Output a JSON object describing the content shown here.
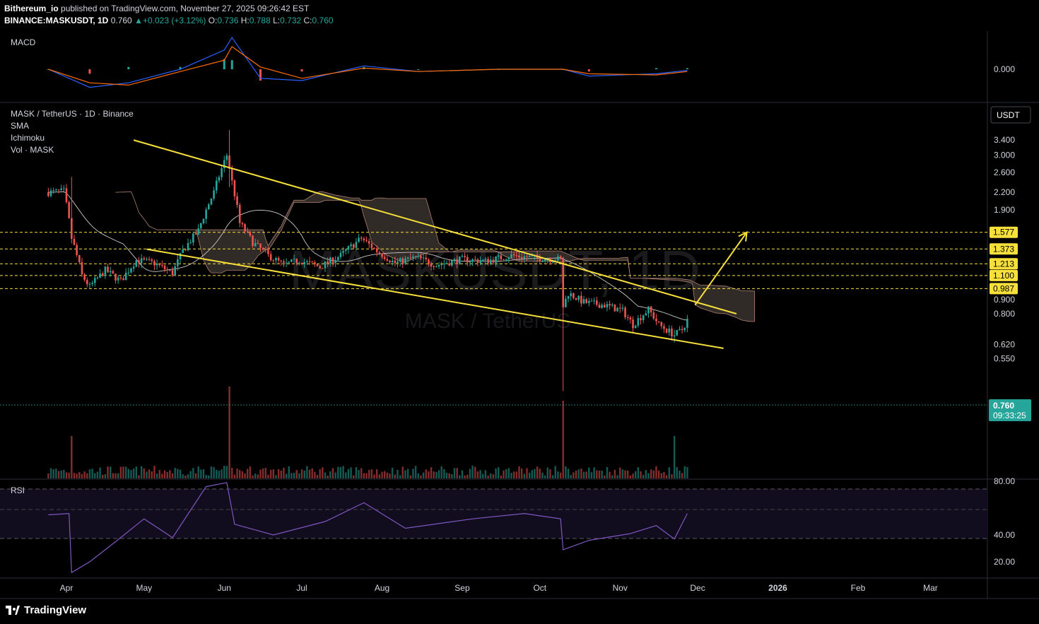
{
  "header": {
    "publisher": "Bithereum_io",
    "published_text": " published on TradingView.com, November 27, 2025 09:26:42 EST",
    "symbol": "BINANCE:MASKUSDT, 1D",
    "last": "0.760",
    "change": "+0.023 (+3.12%)",
    "o_label": "O:",
    "o": "0.736",
    "h_label": "H:",
    "h": "0.788",
    "l_label": "L:",
    "l": "0.732",
    "c_label": "C:",
    "c": "0.760"
  },
  "panes": {
    "macd_label": "MACD",
    "macd_zero": "0.000",
    "main_title": "MASK / TetherUS · 1D · Binance",
    "indicators": [
      "SMA",
      "Ichimoku",
      "Vol · MASK"
    ],
    "rsi_label": "RSI",
    "currency_button": "USDT",
    "watermark": "MASKUSDT, 1D",
    "watermark_sub": "MASK / TetherUS",
    "price_badge": "0.760",
    "countdown": "09:33:25"
  },
  "colors": {
    "up": "#26a69a",
    "down": "#ef5350",
    "trendline": "#f7e03c",
    "level": "#f7e03c",
    "rsi": "#7e57c2",
    "sma": "#c8c8c8",
    "cloud": "#3a332f"
  },
  "footer": {
    "brand": "TradingView"
  },
  "chart_data": [
    {
      "type": "line",
      "name": "MACD",
      "zero_label": "0.000",
      "x": [
        "Mar 25",
        "Apr 10",
        "Apr 25",
        "May 15",
        "Jun 1",
        "Jun 4",
        "Jun 15",
        "Jul 1",
        "Jul 25",
        "Aug 15",
        "Sep 15",
        "Oct 10",
        "Oct 20",
        "Nov 15",
        "Nov 27"
      ],
      "macd": [
        0.0,
        -0.16,
        -0.12,
        0.0,
        0.17,
        0.28,
        -0.08,
        -0.1,
        0.03,
        -0.02,
        0.0,
        0.0,
        -0.06,
        -0.04,
        -0.01
      ],
      "signal": [
        0.0,
        -0.12,
        -0.14,
        -0.02,
        0.08,
        0.2,
        0.02,
        -0.08,
        0.01,
        -0.02,
        0.0,
        0.0,
        -0.04,
        -0.05,
        -0.02
      ]
    },
    {
      "type": "candlestick",
      "title": "MASK / TetherUS · 1D · Binance",
      "y_scale": "log",
      "y_ticks": [
        "3.400",
        "3.000",
        "2.600",
        "2.200",
        "1.900",
        "0.900",
        "0.800",
        "0.620",
        "0.550"
      ],
      "x_ticks": [
        "Apr",
        "May",
        "Jun",
        "Jul",
        "Aug",
        "Sep",
        "Oct",
        "Nov",
        "Dec",
        "2026",
        "Feb",
        "Mar"
      ],
      "last_price": 0.76,
      "horizontal_levels": [
        1.577,
        1.373,
        1.213,
        1.1,
        0.987
      ],
      "level_labels": [
        "1.577",
        "1.373",
        "1.213",
        "1.100",
        "0.987"
      ],
      "close_path": [
        {
          "date": "2025-03-25",
          "close": 2.2
        },
        {
          "date": "2025-03-31",
          "close": 2.22
        },
        {
          "date": "2025-04-03",
          "close": 1.5
        },
        {
          "date": "2025-04-07",
          "close": 1.1
        },
        {
          "date": "2025-04-10",
          "close": 1.0
        },
        {
          "date": "2025-04-16",
          "close": 1.15
        },
        {
          "date": "2025-04-22",
          "close": 1.05
        },
        {
          "date": "2025-04-28",
          "close": 1.25
        },
        {
          "date": "2025-05-05",
          "close": 1.22
        },
        {
          "date": "2025-05-12",
          "close": 1.12
        },
        {
          "date": "2025-05-16",
          "close": 1.35
        },
        {
          "date": "2025-05-22",
          "close": 1.6
        },
        {
          "date": "2025-05-28",
          "close": 2.2
        },
        {
          "date": "2025-06-02",
          "close": 3.0
        },
        {
          "date": "2025-06-04",
          "close": 2.4
        },
        {
          "date": "2025-06-07",
          "close": 1.7
        },
        {
          "date": "2025-06-12",
          "close": 1.45
        },
        {
          "date": "2025-06-18",
          "close": 1.3
        },
        {
          "date": "2025-06-24",
          "close": 1.2
        },
        {
          "date": "2025-06-30",
          "close": 1.25
        },
        {
          "date": "2025-07-08",
          "close": 1.18
        },
        {
          "date": "2025-07-16",
          "close": 1.3
        },
        {
          "date": "2025-07-24",
          "close": 1.5
        },
        {
          "date": "2025-07-30",
          "close": 1.35
        },
        {
          "date": "2025-08-06",
          "close": 1.22
        },
        {
          "date": "2025-08-14",
          "close": 1.28
        },
        {
          "date": "2025-08-22",
          "close": 1.2
        },
        {
          "date": "2025-09-01",
          "close": 1.26
        },
        {
          "date": "2025-09-10",
          "close": 1.24
        },
        {
          "date": "2025-09-20",
          "close": 1.3
        },
        {
          "date": "2025-10-01",
          "close": 1.27
        },
        {
          "date": "2025-10-09",
          "close": 1.26
        },
        {
          "date": "2025-10-10",
          "close": 0.85
        },
        {
          "date": "2025-10-12",
          "close": 0.95
        },
        {
          "date": "2025-10-18",
          "close": 0.88
        },
        {
          "date": "2025-10-26",
          "close": 0.86
        },
        {
          "date": "2025-11-02",
          "close": 0.82
        },
        {
          "date": "2025-11-06",
          "close": 0.73
        },
        {
          "date": "2025-11-12",
          "close": 0.83
        },
        {
          "date": "2025-11-16",
          "close": 0.73
        },
        {
          "date": "2025-11-22",
          "close": 0.67
        },
        {
          "date": "2025-11-25",
          "close": 0.7
        },
        {
          "date": "2025-11-27",
          "close": 0.76
        }
      ],
      "spikes": [
        {
          "date": "2025-04-03",
          "high": 2.5,
          "low": 1.45
        },
        {
          "date": "2025-06-03",
          "high": 3.7,
          "low": 2.3
        },
        {
          "date": "2025-10-10",
          "high": 1.25,
          "low": 0.42
        },
        {
          "date": "2025-11-22",
          "high": 0.7,
          "low": 0.63
        }
      ],
      "trendlines": [
        {
          "from": {
            "date": "2025-04-27",
            "price": 3.4
          },
          "to": {
            "date": "2025-12-16",
            "price": 0.8
          }
        },
        {
          "from": {
            "date": "2025-05-02",
            "price": 1.37
          },
          "to": {
            "date": "2025-12-11",
            "price": 0.6
          }
        }
      ],
      "projection_arrow": {
        "from": {
          "date": "2025-11-30",
          "price": 0.86
        },
        "to": {
          "date": "2025-12-20",
          "price": 1.577
        }
      }
    },
    {
      "type": "line",
      "name": "RSI",
      "y_ticks": [
        "80.00",
        "40.00",
        "20.00"
      ],
      "bands": [
        70,
        30
      ],
      "x": [
        "Mar 25",
        "Apr 2",
        "Apr 3",
        "Apr 10",
        "Apr 20",
        "May 1",
        "May 12",
        "May 25",
        "Jun 2",
        "Jun 5",
        "Jun 20",
        "Jul 10",
        "Jul 25",
        "Aug 10",
        "Sep 5",
        "Sep 25",
        "Oct 9",
        "Oct 10",
        "Oct 20",
        "Nov 5",
        "Nov 15",
        "Nov 22",
        "Nov 27"
      ],
      "values": [
        55,
        56,
        12,
        20,
        35,
        52,
        38,
        76,
        79,
        48,
        40,
        50,
        64,
        45,
        52,
        56,
        52,
        29,
        36,
        41,
        47,
        37,
        56
      ]
    }
  ]
}
